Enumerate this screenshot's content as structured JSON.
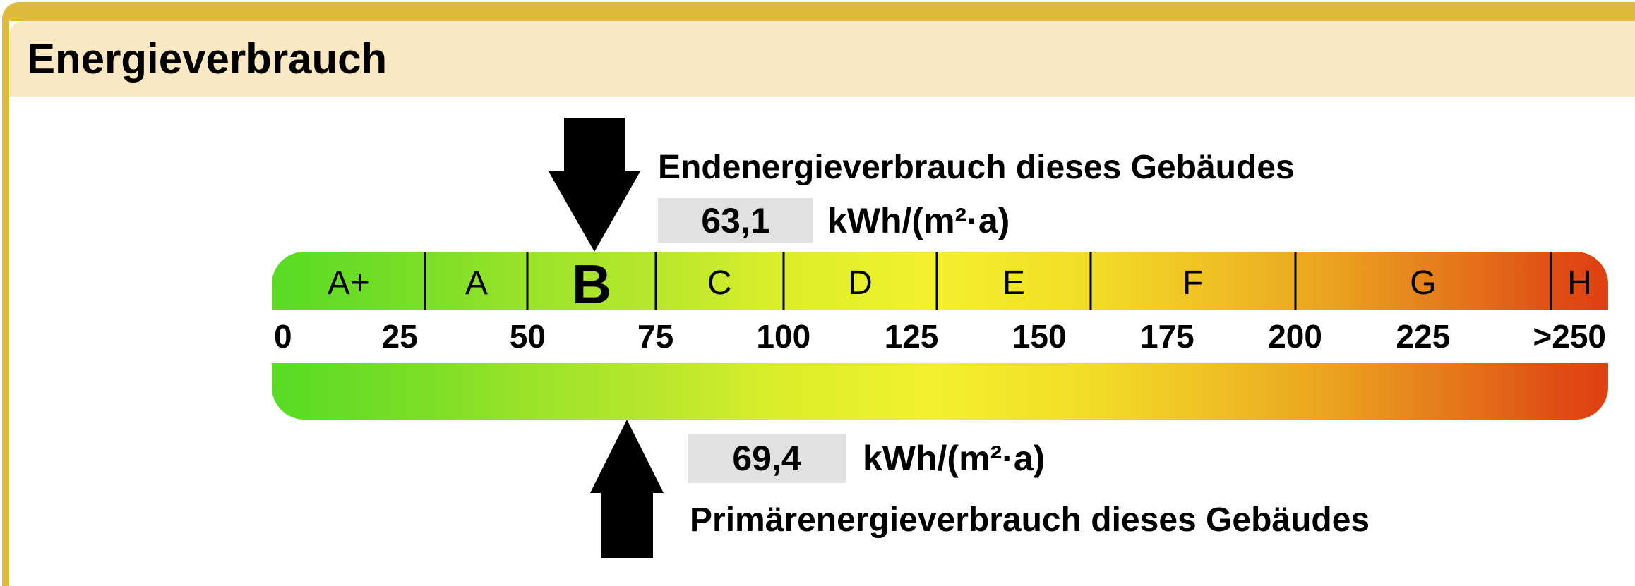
{
  "header": {
    "title": "Energieverbrauch"
  },
  "colors": {
    "frame_gold": "#dfba3b",
    "header_tan": "#f8e8c3",
    "value_box_gray": "#e1e1e1",
    "text_black": "#000000",
    "scale_gradient": [
      "#58db24",
      "#7cde27",
      "#9ae32a",
      "#b8e72c",
      "#dcee2b",
      "#f3f02c",
      "#f2dc28",
      "#efc224",
      "#eaa01f",
      "#e4701a",
      "#e04e14",
      "#de3f10"
    ]
  },
  "end_energy": {
    "label": "Endenergieverbrauch dieses Gebäudes",
    "value": "63,1",
    "value_num": 63.1,
    "unit": "kWh/(m²·a)"
  },
  "primary_energy": {
    "label": "Primärenergieverbrauch dieses Gebäudes",
    "value": "69,4",
    "value_num": 69.4,
    "unit": "kWh/(m²·a)"
  },
  "scale": {
    "current_class": "B",
    "classes": [
      {
        "label": "A+",
        "upper": 30
      },
      {
        "label": "A",
        "upper": 50
      },
      {
        "label": "B",
        "upper": 75,
        "current": true
      },
      {
        "label": "C",
        "upper": 100
      },
      {
        "label": "D",
        "upper": 130
      },
      {
        "label": "E",
        "upper": 160
      },
      {
        "label": "F",
        "upper": 200
      },
      {
        "label": "G",
        "upper": 250
      },
      {
        "label": "H",
        "upper": null
      }
    ],
    "ticks": [
      {
        "label": "0",
        "value": 0,
        "align": "left"
      },
      {
        "label": "25",
        "value": 25
      },
      {
        "label": "50",
        "value": 50
      },
      {
        "label": "75",
        "value": 75
      },
      {
        "label": "100",
        "value": 100
      },
      {
        "label": "125",
        "value": 125
      },
      {
        "label": "150",
        "value": 150
      },
      {
        "label": "175",
        "value": 175
      },
      {
        "label": "200",
        "value": 200
      },
      {
        "label": "225",
        "value": 225
      },
      {
        "label": ">250",
        "value": null,
        "align": "right"
      }
    ]
  },
  "chart_data": {
    "type": "bar",
    "title": "Energieverbrauch",
    "xlabel": "kWh/(m²·a)",
    "axis_ticks": [
      0,
      25,
      50,
      75,
      100,
      125,
      150,
      175,
      200,
      225,
      250
    ],
    "axis_range": [
      0,
      261
    ],
    "classes": [
      {
        "label": "A+",
        "from": 0,
        "to": 30
      },
      {
        "label": "A",
        "from": 30,
        "to": 50
      },
      {
        "label": "B",
        "from": 50,
        "to": 75
      },
      {
        "label": "C",
        "from": 75,
        "to": 100
      },
      {
        "label": "D",
        "from": 100,
        "to": 130
      },
      {
        "label": "E",
        "from": 130,
        "to": 160
      },
      {
        "label": "F",
        "from": 160,
        "to": 200
      },
      {
        "label": "G",
        "from": 200,
        "to": 250
      },
      {
        "label": "H",
        "from": 250,
        "to": null
      }
    ],
    "markers": [
      {
        "name": "Endenergieverbrauch dieses Gebäudes",
        "value": 63.1,
        "class": "B",
        "arrow": "down"
      },
      {
        "name": "Primärenergieverbrauch dieses Gebäudes",
        "value": 69.4,
        "arrow": "up"
      }
    ],
    "legend_position": "none",
    "grid": false
  }
}
